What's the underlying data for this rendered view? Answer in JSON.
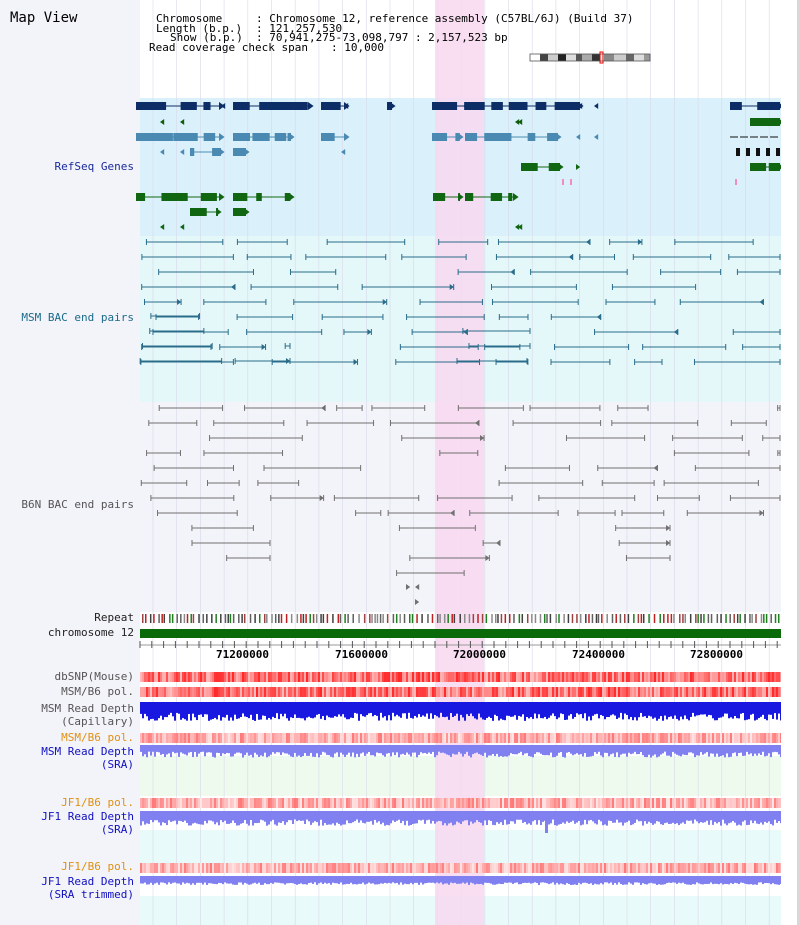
{
  "title": "Map View",
  "header": {
    "chromosome_label": "Chromosome",
    "chromosome_value": ": Chromosome 12, reference assembly (C57BL/6J) (Build 37)",
    "length_label": "Length (b.p.)",
    "length_value": ": 121,257,530",
    "show_label": "Show (b.p.)",
    "show_value": ": 70,941,275-73,098,797 : 2,157,523 bp",
    "coverage_label": "Read coverage check span",
    "coverage_value": ": 10,000"
  },
  "tracks": {
    "refseq": "RefSeq Genes",
    "msm_bac": "MSM BAC end pairs",
    "b6n_bac": "B6N BAC end pairs",
    "repeat": "Repeat",
    "chromosome": "chromosome 12",
    "dbsnp": "dbSNP(Mouse)",
    "msm_b6_pol_1": "MSM/B6 pol.",
    "msm_depth_cap_1": "MSM Read Depth",
    "msm_depth_cap_2": "(Capillary)",
    "msm_b6_pol_2": "MSM/B6 pol.",
    "msm_depth_sra_1": "MSM Read Depth",
    "msm_depth_sra_2": "(SRA)",
    "jf1_pol_1": "JF1/B6 pol.",
    "jf1_depth_1": "JF1 Read Depth",
    "jf1_depth_2": "(SRA)",
    "jf1_pol_2": "JF1/B6 pol.",
    "jf1_trim_1": "JF1 Read Depth",
    "jf1_trim_2": "(SRA trimmed)"
  },
  "axis": {
    "ticks": [
      "71200000",
      "71600000",
      "72000000",
      "72400000",
      "72800000"
    ]
  },
  "colors": {
    "refseq_bg": "#daf1fb",
    "msm_bg": "#e4f8fa",
    "b6n_bg": "#f3f3fa",
    "highlight": "#f8d8f0",
    "navy_gene": "#0d2d66",
    "steel_gene": "#4a8ab2",
    "green_gene": "#116611",
    "chromosome_bar": "#0a6a0a",
    "depth_blue": "#1818e0",
    "depth_light": "#8080f0"
  }
}
